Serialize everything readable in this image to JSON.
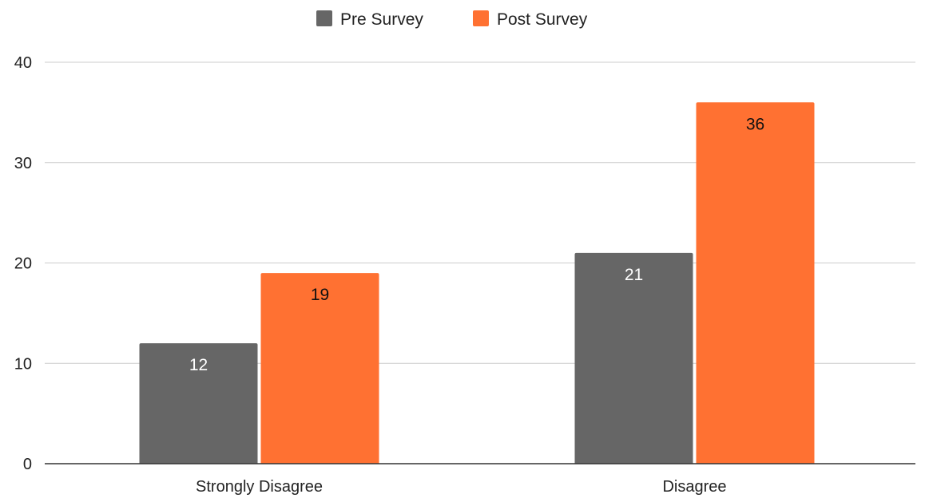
{
  "chart_data": {
    "type": "bar",
    "categories": [
      "Strongly Disagree",
      "Disagree"
    ],
    "series": [
      {
        "name": "Pre Survey",
        "values": [
          12,
          21
        ],
        "color": "#666666",
        "label_color": "#ffffff"
      },
      {
        "name": "Post Survey",
        "values": [
          19,
          36
        ],
        "color": "#ff7132",
        "label_color": "#111111"
      }
    ],
    "ylim": [
      0,
      40
    ],
    "yticks": [
      0,
      10,
      20,
      30,
      40
    ],
    "grid": true,
    "legend_position": "top-center",
    "data_labels": true,
    "title": "",
    "xlabel": "",
    "ylabel": ""
  }
}
